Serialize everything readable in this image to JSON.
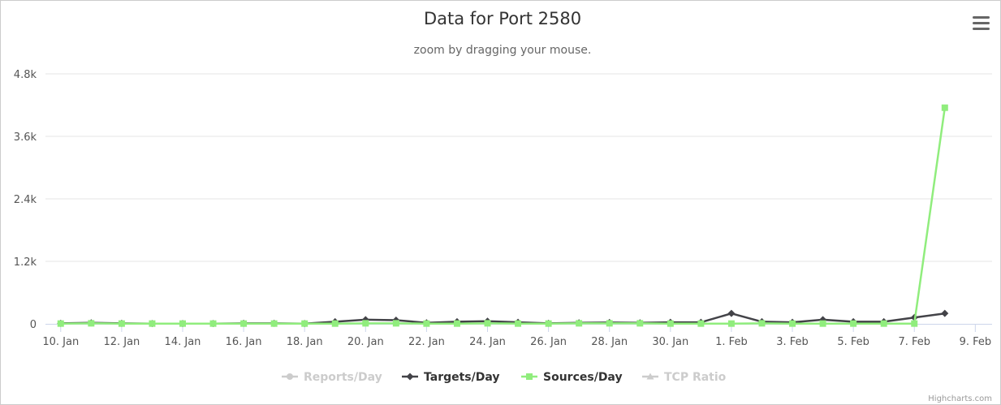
{
  "chart_data": {
    "type": "line",
    "title": "Data for Port 2580",
    "subtitle": "zoom by dragging your mouse.",
    "xlabel": "",
    "ylabel": "",
    "x_dates": [
      "2016-01-10",
      "2016-01-11",
      "2016-01-12",
      "2016-01-13",
      "2016-01-14",
      "2016-01-15",
      "2016-01-16",
      "2016-01-17",
      "2016-01-18",
      "2016-01-19",
      "2016-01-20",
      "2016-01-21",
      "2016-01-22",
      "2016-01-23",
      "2016-01-24",
      "2016-01-25",
      "2016-01-26",
      "2016-01-27",
      "2016-01-28",
      "2016-01-29",
      "2016-01-30",
      "2016-01-31",
      "2016-02-01",
      "2016-02-02",
      "2016-02-03",
      "2016-02-04",
      "2016-02-05",
      "2016-02-06",
      "2016-02-07",
      "2016-02-08"
    ],
    "x_tick_labels": [
      "10. Jan",
      "12. Jan",
      "14. Jan",
      "16. Jan",
      "18. Jan",
      "20. Jan",
      "22. Jan",
      "24. Jan",
      "26. Jan",
      "28. Jan",
      "30. Jan",
      "1. Feb",
      "3. Feb",
      "5. Feb",
      "7. Feb",
      "9. Feb"
    ],
    "x_range": [
      "2016-01-10",
      "2016-02-09"
    ],
    "y_tick_labels": [
      "0",
      "1.2k",
      "2.4k",
      "3.6k",
      "4.8k"
    ],
    "y_ticks": [
      0,
      1200,
      2400,
      3600,
      4800
    ],
    "ylim": [
      0,
      4800
    ],
    "grid": "horizontal",
    "legend_position": "bottom-center",
    "series": [
      {
        "name": "Reports/Day",
        "visible": false,
        "color": "#cccccc",
        "marker": "circle",
        "values": []
      },
      {
        "name": "Targets/Day",
        "visible": true,
        "color": "#434348",
        "marker": "diamond",
        "values": [
          10,
          20,
          10,
          5,
          5,
          5,
          10,
          10,
          5,
          40,
          80,
          70,
          20,
          40,
          50,
          30,
          10,
          20,
          25,
          20,
          30,
          30,
          200,
          40,
          30,
          80,
          40,
          40,
          120,
          200
        ]
      },
      {
        "name": "Sources/Day",
        "visible": true,
        "color": "#90ed7d",
        "marker": "square",
        "values": [
          5,
          10,
          5,
          5,
          5,
          5,
          5,
          5,
          5,
          5,
          10,
          10,
          5,
          5,
          10,
          5,
          5,
          10,
          10,
          10,
          5,
          5,
          5,
          10,
          5,
          5,
          5,
          5,
          5,
          4150
        ]
      },
      {
        "name": "TCP Ratio",
        "visible": false,
        "color": "#cccccc",
        "marker": "triangle",
        "values": []
      }
    ]
  },
  "credits": "Highcharts.com",
  "colors": {
    "hidden_series": "#cccccc",
    "grid": "#e6e6e6",
    "axis": "#ccd6eb"
  }
}
